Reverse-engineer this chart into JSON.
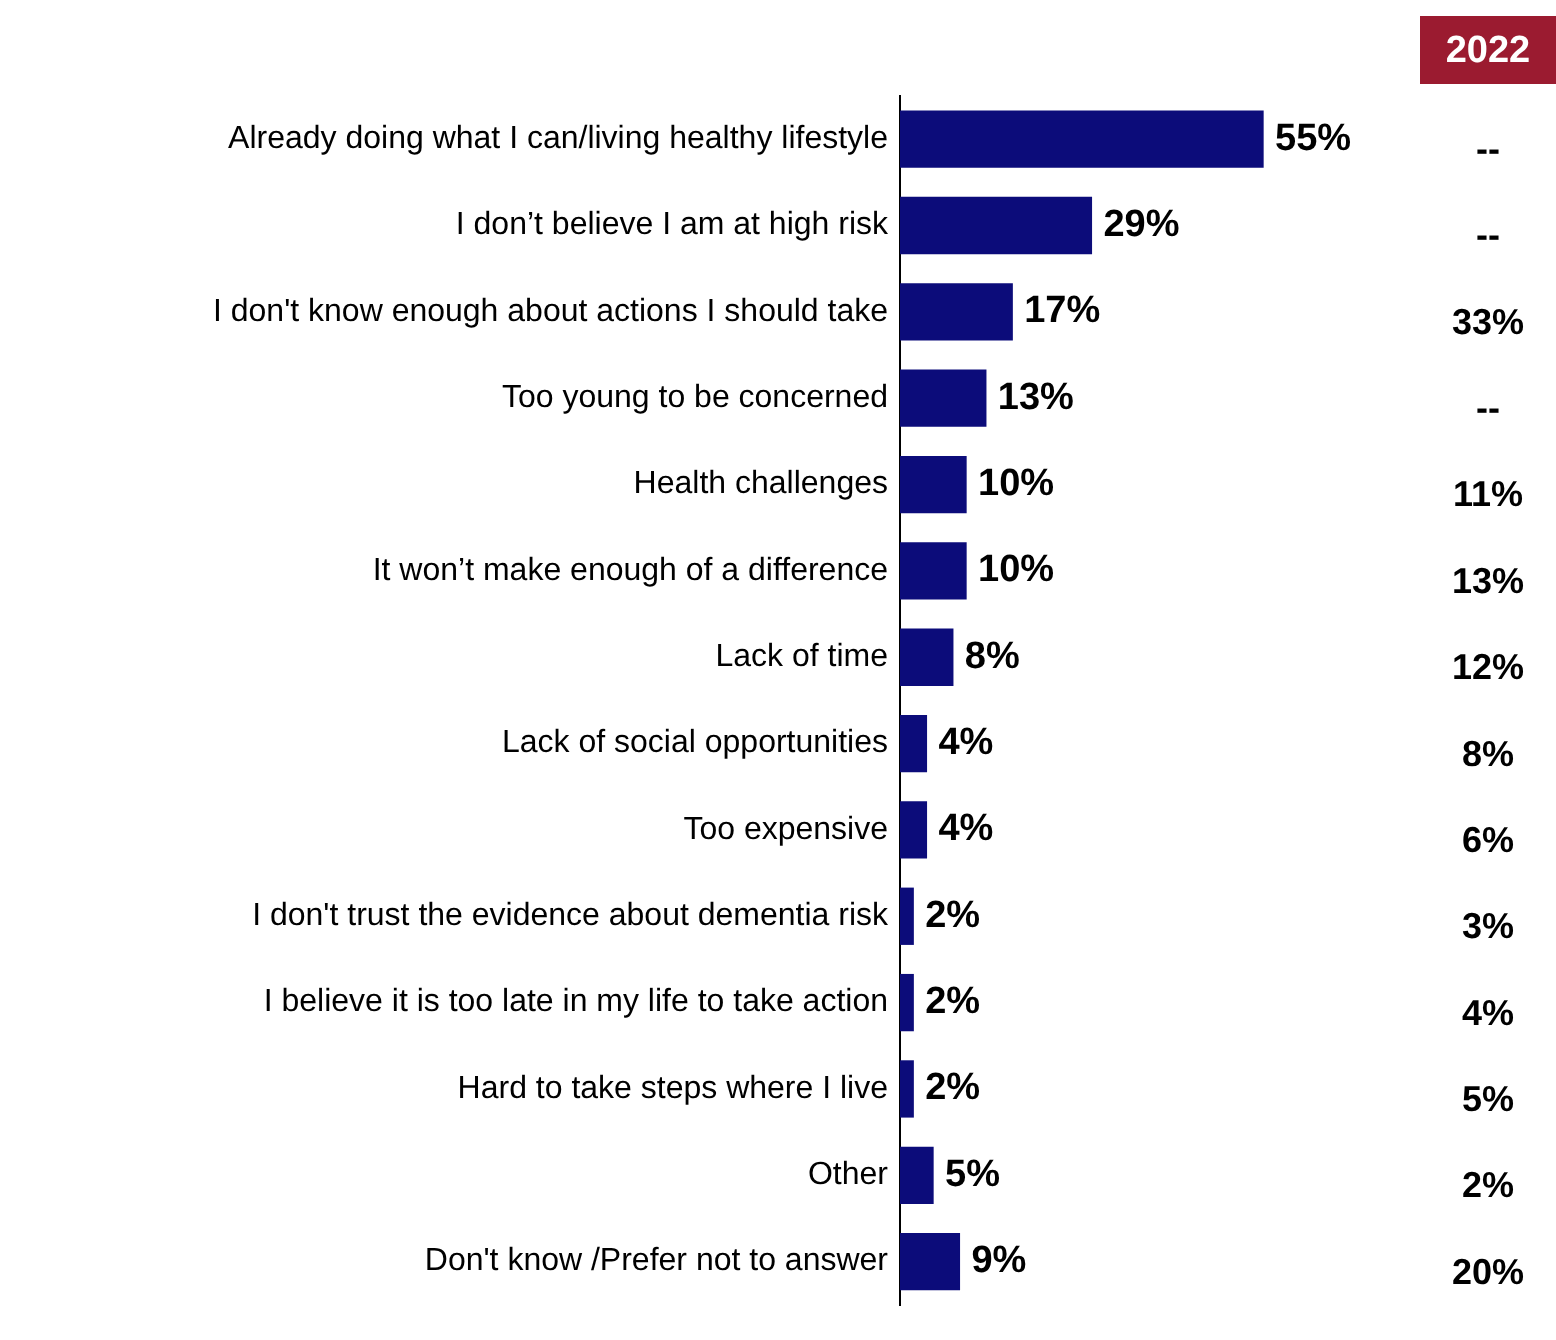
{
  "chart_data": {
    "type": "bar",
    "orientation": "horizontal",
    "categories": [
      "Already doing what I can/living healthy lifestyle",
      "I don’t believe I am at high risk",
      "I don't know enough about actions I should take",
      "Too young to be concerned",
      "Health challenges",
      "It won’t make enough of a difference",
      "Lack of time",
      "Lack of social opportunities",
      "Too expensive",
      "I don't trust the evidence about dementia risk",
      "I believe it is too late in my life to take action",
      "Hard to take steps where I live",
      "Other",
      "Don't know /Prefer not to answer"
    ],
    "values": [
      55,
      29,
      17,
      13,
      10,
      10,
      8,
      4,
      4,
      2,
      2,
      2,
      5,
      9
    ],
    "value_labels": [
      "55%",
      "29%",
      "17%",
      "13%",
      "10%",
      "10%",
      "8%",
      "4%",
      "4%",
      "2%",
      "2%",
      "2%",
      "5%",
      "9%"
    ],
    "color": "#0c0c7a",
    "tick_labels": "y",
    "grid": false,
    "legend": false,
    "annotations": [
      "2022",
      "--",
      "--",
      "33%",
      "--",
      "11%",
      "13%",
      "12%",
      "8%",
      "6%",
      "3%",
      "4%",
      "5%",
      "2%",
      "20%"
    ]
  }
}
